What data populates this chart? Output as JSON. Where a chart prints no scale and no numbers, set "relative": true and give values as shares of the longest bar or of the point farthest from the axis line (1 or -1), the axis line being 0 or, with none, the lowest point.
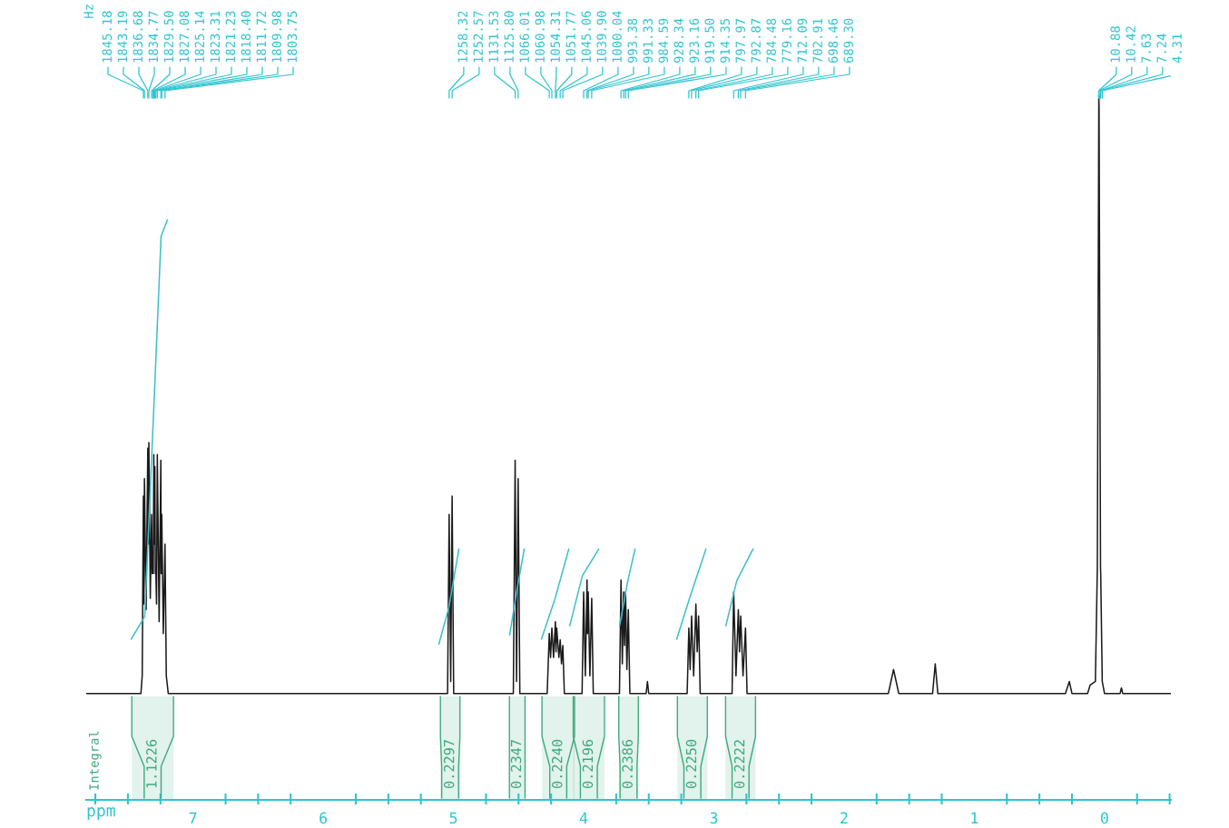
{
  "chart_data": {
    "type": "line",
    "relative": true,
    "xlabel": "ppm",
    "xlim": [
      7.82,
      -0.51
    ],
    "xticks": [
      {
        "value": 7.75,
        "label": null
      },
      {
        "value": 7.5,
        "label": null
      },
      {
        "value": 7.25,
        "label": null
      },
      7,
      {
        "value": 6.75,
        "label": null
      },
      {
        "value": 6.5,
        "label": null
      },
      {
        "value": 6.25,
        "label": null
      },
      6,
      {
        "value": 5.75,
        "label": null
      },
      {
        "value": 5.5,
        "label": null
      },
      {
        "value": 5.25,
        "label": null
      },
      5,
      {
        "value": 4.75,
        "label": null
      },
      {
        "value": 4.5,
        "label": null
      },
      {
        "value": 4.25,
        "label": null
      },
      4,
      {
        "value": 3.75,
        "label": null
      },
      {
        "value": 3.5,
        "label": null
      },
      {
        "value": 3.25,
        "label": null
      },
      3,
      {
        "value": 2.75,
        "label": null
      },
      {
        "value": 2.5,
        "label": null
      },
      {
        "value": 2.25,
        "label": null
      },
      2,
      {
        "value": 1.75,
        "label": null
      },
      {
        "value": 1.5,
        "label": null
      },
      {
        "value": 1.25,
        "label": null
      },
      1,
      {
        "value": 0.75,
        "label": null
      },
      {
        "value": 0.5,
        "label": null
      },
      {
        "value": 0.25,
        "label": null
      },
      0,
      {
        "value": -0.25,
        "label": null
      },
      {
        "value": -0.5,
        "label": null
      }
    ],
    "tick_labels": "x",
    "series": [
      {
        "type": "line",
        "color": "#1a1a1a",
        "x": [
          7.82,
          7.6,
          7.4,
          7.39,
          7.381,
          7.377,
          7.373,
          7.36,
          7.347,
          7.343,
          7.339,
          7.328,
          7.318,
          7.313,
          7.308,
          7.305,
          7.301,
          7.297,
          7.293,
          7.289,
          7.285,
          7.28,
          7.274,
          7.26,
          7.247,
          7.244,
          7.24,
          7.228,
          7.215,
          7.205,
          7.19,
          6.5,
          5.6,
          5.045,
          5.033,
          5.021,
          5.01,
          4.998,
          4.7,
          4.54,
          4.526,
          4.515,
          4.503,
          4.49,
          4.28,
          4.264,
          4.254,
          4.244,
          4.231,
          4.217,
          4.212,
          4.207,
          4.19,
          4.18,
          4.17,
          4.16,
          4.148,
          4.012,
          4.0,
          3.987,
          3.974,
          3.97,
          3.965,
          3.952,
          3.938,
          3.926,
          3.725,
          3.713,
          3.703,
          3.693,
          3.686,
          3.678,
          3.668,
          3.657,
          3.645,
          3.52,
          3.51,
          3.5,
          3.205,
          3.192,
          3.182,
          3.171,
          3.155,
          3.138,
          3.128,
          3.117,
          3.105,
          2.86,
          2.848,
          2.83,
          2.812,
          2.803,
          2.794,
          2.776,
          2.757,
          2.745,
          2.0,
          1.66,
          1.62,
          1.58,
          1.32,
          1.3,
          1.28,
          0.3,
          0.27,
          0.25,
          0.13,
          0.11,
          0.07,
          0.055,
          0.0435,
          0.0417,
          0.0305,
          0.029,
          0.0172,
          0.0,
          -0.12,
          -0.13,
          -0.14,
          -0.51
        ],
        "values": [
          0.151,
          0.151,
          0.151,
          0.176,
          0.431,
          0.278,
          0.456,
          0.27,
          0.499,
          0.363,
          0.507,
          0.286,
          0.405,
          0.321,
          0.354,
          0.321,
          0.49,
          0.363,
          0.473,
          0.321,
          0.321,
          0.278,
          0.49,
          0.253,
          0.482,
          0.321,
          0.405,
          0.236,
          0.363,
          0.176,
          0.151,
          0.151,
          0.151,
          0.151,
          0.405,
          0.168,
          0.431,
          0.151,
          0.151,
          0.151,
          0.482,
          0.168,
          0.456,
          0.151,
          0.151,
          0.236,
          0.202,
          0.244,
          0.202,
          0.253,
          0.21,
          0.244,
          0.202,
          0.227,
          0.193,
          0.219,
          0.151,
          0.151,
          0.295,
          0.176,
          0.312,
          0.236,
          0.295,
          0.176,
          0.286,
          0.151,
          0.151,
          0.312,
          0.193,
          0.295,
          0.219,
          0.295,
          0.185,
          0.27,
          0.151,
          0.151,
          0.168,
          0.151,
          0.151,
          0.244,
          0.185,
          0.261,
          0.176,
          0.278,
          0.21,
          0.261,
          0.151,
          0.151,
          0.295,
          0.176,
          0.27,
          0.21,
          0.261,
          0.176,
          0.244,
          0.151,
          0.151,
          0.151,
          0.185,
          0.151,
          0.151,
          0.193,
          0.151,
          0.151,
          0.168,
          0.151,
          0.151,
          0.163,
          0.168,
          0.329,
          1.0,
          0.983,
          0.329,
          0.321,
          0.168,
          0.151,
          0.151,
          0.159,
          0.151,
          0.151
        ]
      },
      {
        "color": "#3bbfcc",
        "x": [
          7.475,
          7.371,
          7.301,
          7.245,
          7.197
        ],
        "values": [
          0.228,
          0.26,
          0.556,
          0.8,
          0.823
        ]
      },
      {
        "color": "#3bbfcc",
        "x": [
          5.112,
          5.035,
          4.958
        ],
        "values": [
          0.221,
          0.273,
          0.356
        ]
      },
      {
        "color": "#3bbfcc",
        "x": [
          4.568,
          4.512,
          4.456
        ],
        "values": [
          0.234,
          0.298,
          0.356
        ]
      },
      {
        "color": "#3bbfcc",
        "x": [
          4.324,
          4.219,
          4.114
        ],
        "values": [
          0.228,
          0.286,
          0.356
        ]
      },
      {
        "color": "#3bbfcc",
        "x": [
          4.107,
          4.01,
          3.884
        ],
        "values": [
          0.247,
          0.318,
          0.356
        ]
      },
      {
        "color": "#3bbfcc",
        "x": [
          3.724,
          3.661,
          3.605
        ],
        "values": [
          0.247,
          0.311,
          0.356
        ]
      },
      {
        "color": "#3bbfcc",
        "x": [
          3.285,
          3.187,
          3.061
        ],
        "values": [
          0.228,
          0.286,
          0.356
        ]
      },
      {
        "color": "#3bbfcc",
        "x": [
          2.908,
          2.824,
          2.699
        ],
        "values": [
          0.247,
          0.311,
          0.356
        ]
      }
    ],
    "bands": [
      {
        "axis": "x",
        "from": 7.47,
        "to": 7.15,
        "label": "1.1226",
        "color": "#3daa7d"
      },
      {
        "axis": "x",
        "from": 5.1,
        "to": 4.95,
        "label": "0.2297",
        "color": "#3daa7d"
      },
      {
        "axis": "x",
        "from": 4.57,
        "to": 4.45,
        "label": "0.2347",
        "color": "#3daa7d"
      },
      {
        "axis": "x",
        "from": 4.32,
        "to": 4.07,
        "label": "0.2240",
        "color": "#3daa7d"
      },
      {
        "axis": "x",
        "from": 4.08,
        "to": 3.84,
        "label": "0.2196",
        "color": "#3daa7d"
      },
      {
        "axis": "x",
        "from": 3.73,
        "to": 3.58,
        "label": "0.2386",
        "color": "#3daa7d"
      },
      {
        "axis": "x",
        "from": 3.28,
        "to": 3.05,
        "label": "0.2250",
        "color": "#3daa7d"
      },
      {
        "axis": "x",
        "from": 2.91,
        "to": 2.68,
        "label": "0.2222",
        "color": "#3daa7d"
      }
    ],
    "annotations": [
      "Hz",
      "Integral",
      {
        "text": "1845.18",
        "x": 7.381
      },
      {
        "text": "1843.19",
        "x": 7.373
      },
      {
        "text": "1836.68",
        "x": 7.347
      },
      {
        "text": "1834.77",
        "x": 7.339
      },
      {
        "text": "1829.50",
        "x": 7.318
      },
      {
        "text": "1827.08",
        "x": 7.308
      },
      {
        "text": "1825.14",
        "x": 7.301
      },
      {
        "text": "1823.31",
        "x": 7.293
      },
      {
        "text": "1821.23",
        "x": 7.285
      },
      {
        "text": "1818.40",
        "x": 7.274
      },
      {
        "text": "1811.72",
        "x": 7.247
      },
      {
        "text": "1809.98",
        "x": 7.24
      },
      {
        "text": "1803.75",
        "x": 7.215
      },
      {
        "text": "1258.32",
        "x": 5.033
      },
      {
        "text": "1252.57",
        "x": 5.01
      },
      {
        "text": "1131.53",
        "x": 4.526
      },
      {
        "text": "1125.80",
        "x": 4.503
      },
      {
        "text": "1066.01",
        "x": 4.264
      },
      {
        "text": "1060.98",
        "x": 4.244
      },
      {
        "text": "1054.31",
        "x": 4.217
      },
      {
        "text": "1051.77",
        "x": 4.207
      },
      {
        "text": "1045.06",
        "x": 4.18
      },
      {
        "text": "1039.90",
        "x": 4.16
      },
      {
        "text": "1000.04",
        "x": 4.0
      },
      {
        "text": "993.38",
        "x": 3.974
      },
      {
        "text": "991.33",
        "x": 3.965
      },
      {
        "text": "984.59",
        "x": 3.938
      },
      {
        "text": "928.34",
        "x": 3.713
      },
      {
        "text": "923.16",
        "x": 3.693
      },
      {
        "text": "919.50",
        "x": 3.678
      },
      {
        "text": "914.35",
        "x": 3.657
      },
      {
        "text": "797.97",
        "x": 3.192
      },
      {
        "text": "792.87",
        "x": 3.171
      },
      {
        "text": "784.48",
        "x": 3.138
      },
      {
        "text": "779.16",
        "x": 3.117
      },
      {
        "text": "712.09",
        "x": 2.848
      },
      {
        "text": "702.91",
        "x": 2.812
      },
      {
        "text": "698.46",
        "x": 2.794
      },
      {
        "text": "689.30",
        "x": 2.757
      },
      {
        "text": "10.88",
        "x": 0.0435
      },
      {
        "text": "10.42",
        "x": 0.0417
      },
      {
        "text": "7.63",
        "x": 0.0305
      },
      {
        "text": "7.24",
        "x": 0.029
      },
      {
        "text": "4.31",
        "x": 0.0172
      }
    ]
  }
}
